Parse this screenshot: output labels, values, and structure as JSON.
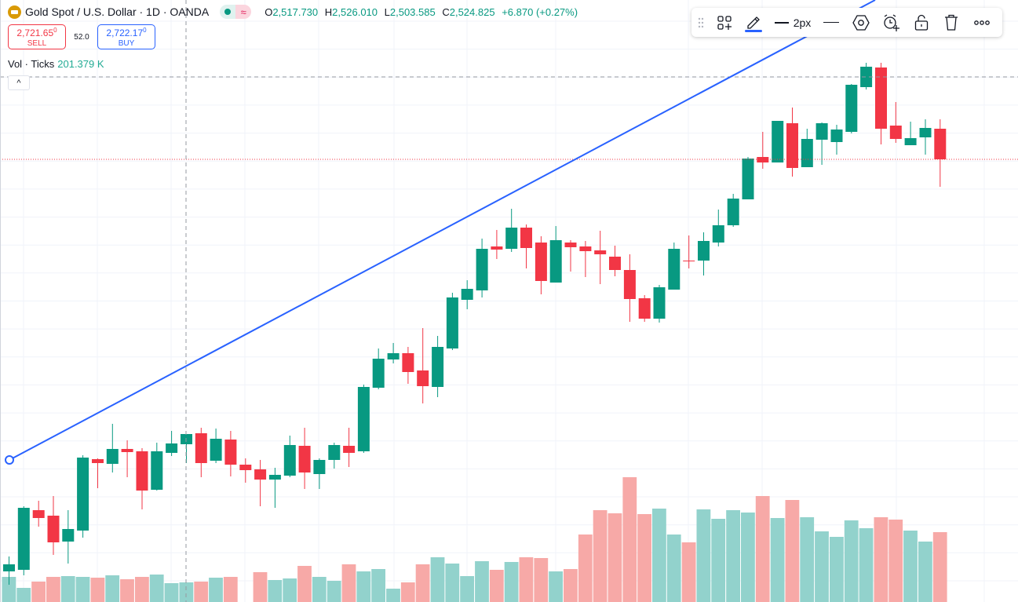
{
  "legend": {
    "symbol_title": "Gold Spot / U.S. Dollar · 1D · OANDA",
    "logo_icon": "gold-bars-icon",
    "market_status_icon": "market-open-dot-icon",
    "data_delay_icon": "approx-icon",
    "data_delay_glyph": "≈",
    "ohlc": {
      "open_label": "O",
      "open": "2,517.730",
      "high_label": "H",
      "high": "2,526.010",
      "low_label": "L",
      "low": "2,503.585",
      "close_label": "C",
      "close": "2,524.825",
      "change": "+6.870 (+0.27%)"
    }
  },
  "trading": {
    "sell_price": "2,721.65",
    "sell_price_sup": "0",
    "sell_label": "SELL",
    "spread": "52.0",
    "buy_price": "2,722.17",
    "buy_price_sup": "0",
    "buy_label": "BUY"
  },
  "volume_indicator": {
    "label": "Vol · Ticks",
    "value": "201.379 K"
  },
  "collapse_glyph": "^",
  "drawing_toolbar": {
    "items": [
      {
        "icon": "drag-handle-icon"
      },
      {
        "icon": "templates-icon"
      },
      {
        "icon": "pencil-color-icon",
        "color": "#2962ff"
      },
      {
        "icon": "line-width-icon",
        "label": "2px"
      },
      {
        "icon": "line-style-icon"
      },
      {
        "icon": "settings-hexagon-icon"
      },
      {
        "icon": "add-alert-icon"
      },
      {
        "icon": "unlock-icon"
      },
      {
        "icon": "trash-icon"
      },
      {
        "icon": "more-icon"
      }
    ]
  },
  "colors": {
    "up": "#089981",
    "down": "#f23645",
    "vol_up": "#92d2cc",
    "vol_down": "#f7a9a7",
    "trend_line": "#2962ff",
    "last_price_line": "#f23645",
    "crosshair": "#9598a1"
  }
}
